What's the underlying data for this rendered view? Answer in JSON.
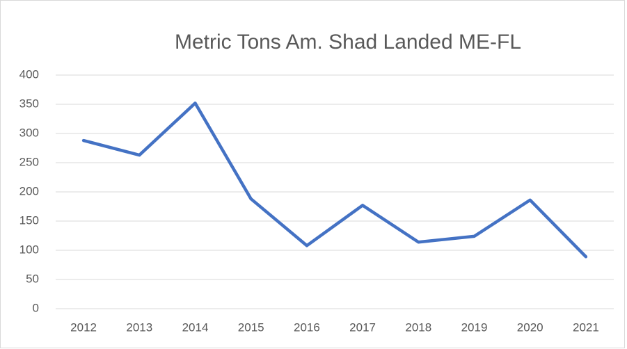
{
  "chart_data": {
    "type": "line",
    "title": "Metric Tons Am. Shad Landed ME-FL",
    "categories": [
      "2012",
      "2013",
      "2014",
      "2015",
      "2016",
      "2017",
      "2018",
      "2019",
      "2020",
      "2021"
    ],
    "series": [
      {
        "name": "Metric Tons",
        "color": "#4472c4",
        "values": [
          288,
          263,
          352,
          188,
          108,
          177,
          114,
          124,
          186,
          89
        ]
      }
    ],
    "ylim": [
      0,
      400
    ],
    "yticks": [
      0,
      50,
      100,
      150,
      200,
      250,
      300,
      350,
      400
    ],
    "grid": true,
    "legend": false
  }
}
